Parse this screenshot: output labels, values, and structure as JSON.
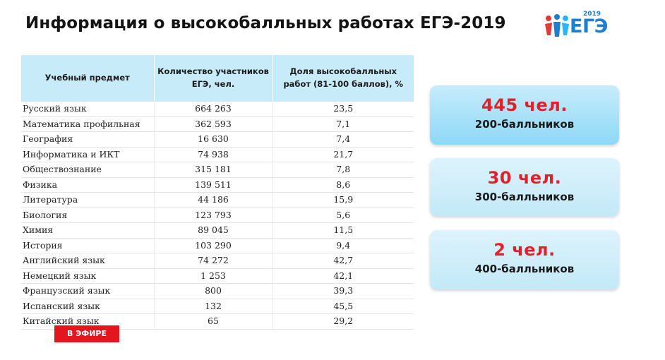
{
  "title": "Информация о высокобалльных работах ЕГЭ-2019",
  "logo": {
    "year": "2019",
    "text": "ЕГЭ",
    "icon": "people-icon",
    "color": "#1e7fd0"
  },
  "table": {
    "headers": [
      "Учебный предмет",
      "Количество участников ЕГЭ, чел.",
      "Доля высокобалльных работ (81-100 баллов), %"
    ],
    "rows": [
      {
        "subject": "Русский язык",
        "count": "664 263",
        "share": "23,5"
      },
      {
        "subject": "Математика профильная",
        "count": "362 593",
        "share": "7,1"
      },
      {
        "subject": "География",
        "count": "16 630",
        "share": "7,4"
      },
      {
        "subject": "Информатика и ИКТ",
        "count": "74 938",
        "share": "21,7"
      },
      {
        "subject": "Обществознание",
        "count": "315 181",
        "share": "7,8"
      },
      {
        "subject": "Физика",
        "count": "139 511",
        "share": "8,6"
      },
      {
        "subject": "Литература",
        "count": "44 186",
        "share": "15,9"
      },
      {
        "subject": "Биология",
        "count": "123 793",
        "share": "5,6"
      },
      {
        "subject": "Химия",
        "count": "89 045",
        "share": "11,5"
      },
      {
        "subject": "История",
        "count": "103 290",
        "share": "9,4"
      },
      {
        "subject": "Английский язык",
        "count": "74 272",
        "share": "42,7"
      },
      {
        "subject": "Немецкий язык",
        "count": "1 253",
        "share": "42,1"
      },
      {
        "subject": "Французский язык",
        "count": "800",
        "share": "39,3"
      },
      {
        "subject": "Испанский язык",
        "count": "132",
        "share": "45,5"
      },
      {
        "subject": "Китайский язык",
        "count": "65",
        "share": "29,2"
      }
    ]
  },
  "cards": [
    {
      "value": "445 чел.",
      "caption": "200-балльников"
    },
    {
      "value": "30 чел.",
      "caption": "300-балльников"
    },
    {
      "value": "2 чел.",
      "caption": "400-балльников"
    }
  ],
  "colors": {
    "accent_red": "#e1202c",
    "header_blue": "#c8ebf9",
    "button_red": "#e3161f"
  },
  "live_button": {
    "label": "В ЭФИРЕ"
  }
}
